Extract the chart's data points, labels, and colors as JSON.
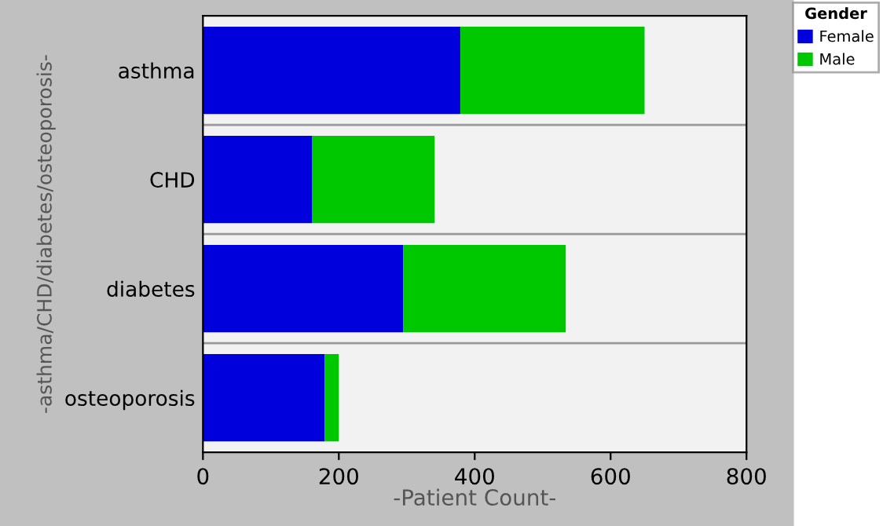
{
  "chart_data": {
    "type": "bar",
    "orientation": "horizontal",
    "stacked": true,
    "xlabel": "-Patient Count-",
    "ylabel": "-asthma/CHD/diabetes/osteoporosis-",
    "legend_title": "Gender",
    "categories": [
      "asthma",
      "CHD",
      "diabetes",
      "osteoporosis"
    ],
    "series": [
      {
        "name": "Female",
        "color": "#0000dd",
        "values": [
          379,
          161,
          295,
          179
        ]
      },
      {
        "name": "Male",
        "color": "#00c800",
        "values": [
          271,
          180,
          239,
          21
        ]
      }
    ],
    "xlim": [
      0,
      800
    ],
    "xticks": [
      0,
      200,
      400,
      600,
      800
    ],
    "legend": "right"
  }
}
